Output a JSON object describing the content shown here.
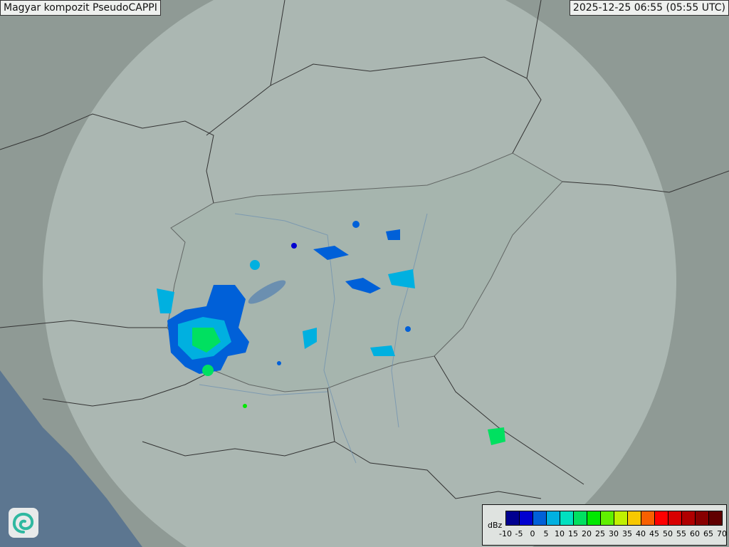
{
  "title": "Magyar kompozit  PseudoCAPPI",
  "timestamp": "2025-12-25 06:55 (05:55 UTC)",
  "legend": {
    "unit": "dBz",
    "ticks": [
      "-10",
      "-5",
      "0",
      "5",
      "10",
      "15",
      "20",
      "25",
      "30",
      "35",
      "40",
      "45",
      "50",
      "55",
      "60",
      "65",
      "70"
    ],
    "colors": [
      "#000090",
      "#0000d0",
      "#0060d8",
      "#00b0e0",
      "#00e0c0",
      "#00e060",
      "#00e800",
      "#60f000",
      "#c0f000",
      "#f8c800",
      "#f86000",
      "#ff0000",
      "#d80000",
      "#b00000",
      "#880000",
      "#600000"
    ]
  },
  "logo_icon": "swirl-logo-icon",
  "colors": {
    "terrain": "#8e9a94",
    "radar_coverage": "#b9c6c0",
    "sea": "#5c7690",
    "border": "#333333"
  }
}
